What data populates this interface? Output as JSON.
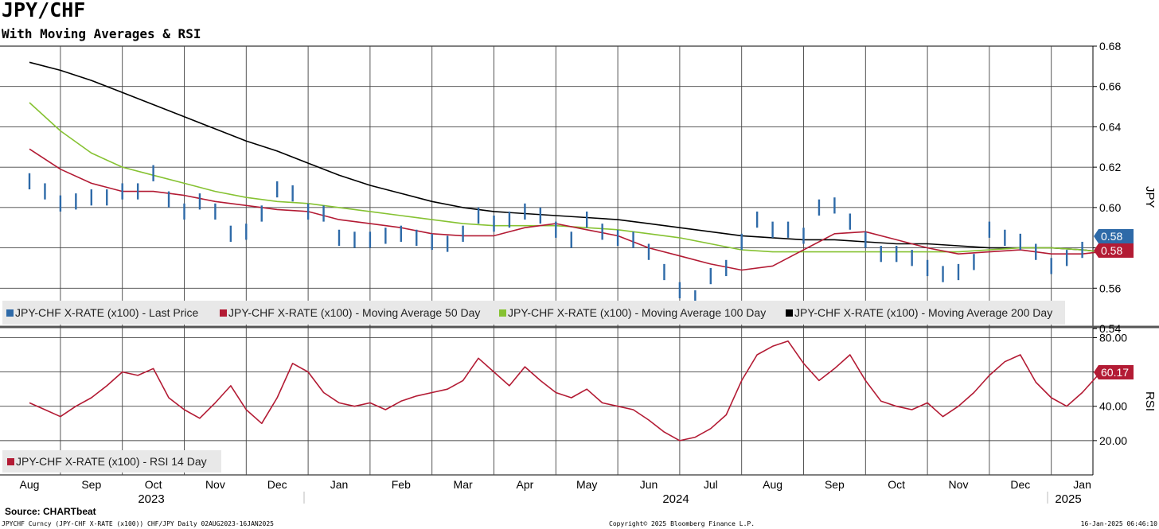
{
  "title": "JPY/CHF",
  "subtitle": "With Moving Averages & RSI",
  "source": "Source: CHARTbeat",
  "footer": {
    "left": "JPYCHF Curncy (JPY-CHF X-RATE (x100)) CHF/JPY  Daily 02AUG2023-16JAN2025",
    "center": "Copyright© 2025 Bloomberg Finance L.P.",
    "right": "16-Jan-2025 06:46:10"
  },
  "chart_data": [
    {
      "type": "line",
      "ylabel": "JPY",
      "ylim": [
        0.54,
        0.68
      ],
      "yticks": [
        "0.54",
        "0.56",
        "0.58",
        "0.60",
        "0.62",
        "0.64",
        "0.66",
        "0.68"
      ],
      "x_unit": "month index from Aug 2023",
      "xlim": [
        0.0,
        17.55
      ],
      "legend_position": "bottom-left",
      "grid": true,
      "series": [
        {
          "name": "JPY-CHF X-RATE (x100) - Last Price",
          "style": "bars",
          "color": "#2e6aa8",
          "last_label": "0.58",
          "x": [
            0.0,
            0.25,
            0.5,
            0.75,
            1.0,
            1.25,
            1.5,
            1.75,
            2.0,
            2.25,
            2.5,
            2.75,
            3.0,
            3.25,
            3.5,
            3.75,
            4.0,
            4.25,
            4.5,
            4.75,
            5.0,
            5.25,
            5.5,
            5.75,
            6.0,
            6.25,
            6.5,
            6.75,
            7.0,
            7.25,
            7.5,
            7.75,
            8.0,
            8.25,
            8.5,
            8.75,
            9.0,
            9.25,
            9.5,
            9.75,
            10.0,
            10.25,
            10.5,
            10.75,
            11.0,
            11.25,
            11.5,
            11.75,
            12.0,
            12.25,
            12.5,
            12.75,
            13.0,
            13.25,
            13.5,
            13.75,
            14.0,
            14.25,
            14.5,
            14.75,
            15.0,
            15.25,
            15.5,
            15.75,
            16.0,
            16.25,
            16.5,
            16.75,
            17.0,
            17.3
          ],
          "values": [
            0.613,
            0.608,
            0.602,
            0.603,
            0.605,
            0.605,
            0.608,
            0.608,
            0.617,
            0.604,
            0.598,
            0.603,
            0.598,
            0.587,
            0.588,
            0.597,
            0.609,
            0.607,
            0.598,
            0.597,
            0.585,
            0.584,
            0.584,
            0.586,
            0.587,
            0.585,
            0.583,
            0.582,
            0.587,
            0.596,
            0.592,
            0.594,
            0.598,
            0.596,
            0.589,
            0.584,
            0.594,
            0.588,
            0.585,
            0.584,
            0.578,
            0.568,
            0.559,
            0.555,
            0.566,
            0.57,
            0.583,
            0.594,
            0.589,
            0.589,
            0.586,
            0.6,
            0.601,
            0.593,
            0.584,
            0.577,
            0.577,
            0.575,
            0.57,
            0.567,
            0.568,
            0.573,
            0.589,
            0.585,
            0.583,
            0.578,
            0.571,
            0.575,
            0.579,
            0.585
          ]
        },
        {
          "name": "JPY-CHF X-RATE (x100) - Moving Average 50 Day",
          "color": "#b31b34",
          "last_label": "0.58",
          "x": [
            0.0,
            0.5,
            1.0,
            1.5,
            2.0,
            2.5,
            3.0,
            3.5,
            4.0,
            4.5,
            5.0,
            5.5,
            6.0,
            6.5,
            7.0,
            7.5,
            8.0,
            8.5,
            9.0,
            9.5,
            10.0,
            10.5,
            11.0,
            11.5,
            12.0,
            12.5,
            13.0,
            13.5,
            14.0,
            14.5,
            15.0,
            15.5,
            16.0,
            16.5,
            17.0,
            17.3
          ],
          "values": [
            0.629,
            0.619,
            0.612,
            0.608,
            0.608,
            0.606,
            0.603,
            0.601,
            0.599,
            0.598,
            0.594,
            0.592,
            0.59,
            0.587,
            0.586,
            0.586,
            0.59,
            0.592,
            0.589,
            0.586,
            0.58,
            0.576,
            0.572,
            0.569,
            0.571,
            0.579,
            0.587,
            0.588,
            0.584,
            0.58,
            0.577,
            0.578,
            0.579,
            0.577,
            0.577,
            0.578
          ]
        },
        {
          "name": "JPY-CHF X-RATE (x100) - Moving Average 100 Day",
          "color": "#86c232",
          "x": [
            0.0,
            0.5,
            1.0,
            1.5,
            2.0,
            2.5,
            3.0,
            3.5,
            4.0,
            4.5,
            5.0,
            5.5,
            6.0,
            6.5,
            7.0,
            7.5,
            8.0,
            8.5,
            9.0,
            9.5,
            10.0,
            10.5,
            11.0,
            11.5,
            12.0,
            12.5,
            13.0,
            13.5,
            14.0,
            14.5,
            15.0,
            15.5,
            16.0,
            16.5,
            17.0,
            17.3
          ],
          "values": [
            0.652,
            0.638,
            0.627,
            0.62,
            0.616,
            0.612,
            0.608,
            0.605,
            0.603,
            0.602,
            0.6,
            0.598,
            0.596,
            0.594,
            0.592,
            0.591,
            0.591,
            0.591,
            0.59,
            0.589,
            0.587,
            0.585,
            0.582,
            0.579,
            0.578,
            0.578,
            0.578,
            0.578,
            0.578,
            0.578,
            0.578,
            0.579,
            0.58,
            0.58,
            0.579,
            0.578
          ]
        },
        {
          "name": "JPY-CHF X-RATE (x100) - Moving Average 200 Day",
          "color": "#000000",
          "x": [
            0.0,
            0.5,
            1.0,
            1.5,
            2.0,
            2.5,
            3.0,
            3.5,
            4.0,
            4.5,
            5.0,
            5.5,
            6.0,
            6.5,
            7.0,
            7.5,
            8.0,
            8.5,
            9.0,
            9.5,
            10.0,
            10.5,
            11.0,
            11.5,
            12.0,
            12.5,
            13.0,
            13.5,
            14.0,
            14.5,
            15.0,
            15.5,
            16.0,
            16.5,
            17.0,
            17.3
          ],
          "values": [
            0.672,
            0.668,
            0.663,
            0.657,
            0.651,
            0.645,
            0.639,
            0.633,
            0.628,
            0.622,
            0.616,
            0.611,
            0.607,
            0.603,
            0.6,
            0.598,
            0.597,
            0.596,
            0.595,
            0.594,
            0.592,
            0.59,
            0.588,
            0.586,
            0.585,
            0.584,
            0.584,
            0.583,
            0.582,
            0.582,
            0.581,
            0.58,
            0.58,
            0.58,
            0.579,
            0.578
          ]
        }
      ]
    },
    {
      "type": "line",
      "ylabel": "RSI",
      "ylim": [
        0,
        83
      ],
      "yticks": [
        "20.00",
        "40.00",
        "60.00",
        "80.00"
      ],
      "x_unit": "month index from Aug 2023",
      "xlim": [
        0.0,
        17.55
      ],
      "legend_position": "bottom-left",
      "grid": true,
      "series": [
        {
          "name": "JPY-CHF X-RATE (x100) - RSI 14 Day",
          "color": "#b31b34",
          "last_label": "60.17",
          "x": [
            0.0,
            0.25,
            0.5,
            0.75,
            1.0,
            1.25,
            1.5,
            1.75,
            2.0,
            2.25,
            2.5,
            2.75,
            3.0,
            3.25,
            3.5,
            3.75,
            4.0,
            4.25,
            4.5,
            4.75,
            5.0,
            5.25,
            5.5,
            5.75,
            6.0,
            6.25,
            6.5,
            6.75,
            7.0,
            7.25,
            7.5,
            7.75,
            8.0,
            8.25,
            8.5,
            8.75,
            9.0,
            9.25,
            9.5,
            9.75,
            10.0,
            10.25,
            10.5,
            10.75,
            11.0,
            11.25,
            11.5,
            11.75,
            12.0,
            12.25,
            12.5,
            12.75,
            13.0,
            13.25,
            13.5,
            13.75,
            14.0,
            14.25,
            14.5,
            14.75,
            15.0,
            15.25,
            15.5,
            15.75,
            16.0,
            16.25,
            16.5,
            16.75,
            17.0,
            17.3
          ],
          "values": [
            42,
            38,
            34,
            40,
            45,
            52,
            60,
            58,
            62,
            45,
            38,
            33,
            42,
            52,
            38,
            30,
            45,
            65,
            60,
            48,
            42,
            40,
            42,
            38,
            43,
            46,
            48,
            50,
            55,
            68,
            60,
            52,
            63,
            55,
            48,
            45,
            50,
            42,
            40,
            38,
            32,
            25,
            20,
            22,
            27,
            35,
            55,
            70,
            75,
            78,
            65,
            55,
            62,
            70,
            55,
            43,
            40,
            38,
            42,
            34,
            40,
            48,
            58,
            66,
            70,
            54,
            45,
            40,
            48,
            60
          ]
        }
      ]
    }
  ],
  "x_axis": {
    "months": [
      "Aug",
      "Sep",
      "Oct",
      "Nov",
      "Dec",
      "Jan",
      "Feb",
      "Mar",
      "Apr",
      "May",
      "Jun",
      "Jul",
      "Aug",
      "Sep",
      "Oct",
      "Nov",
      "Dec",
      "Jan"
    ],
    "years": [
      "2023",
      "2024",
      "2025"
    ]
  },
  "colors": {
    "blue": "#2e6aa8",
    "red": "#b31b34",
    "green": "#86c232",
    "black": "#000000",
    "legend_bg": "#e8e8e8"
  }
}
